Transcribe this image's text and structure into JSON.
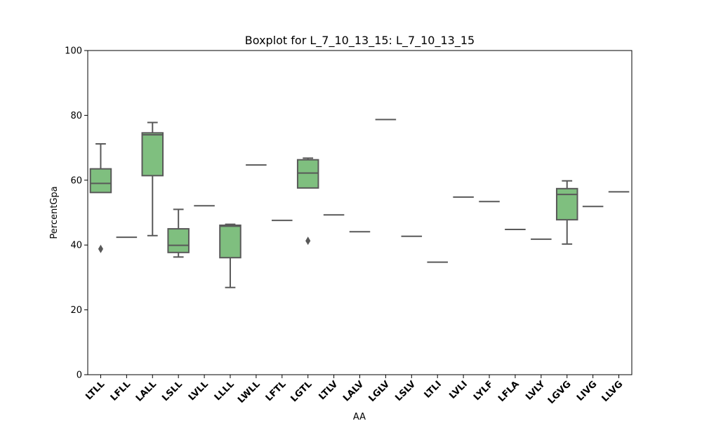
{
  "chart_data": {
    "type": "box",
    "title": "Boxplot for L_7_10_13_15: L_7_10_13_15",
    "xlabel": "AA",
    "ylabel": "PercentGpa",
    "ylim": [
      0,
      100
    ],
    "yticks": [
      0,
      20,
      40,
      60,
      80,
      100
    ],
    "grid": false,
    "box_color": "#7fbf7f",
    "line_color": "#595959",
    "categories": [
      "LTLL",
      "LFLL",
      "LALL",
      "LSLL",
      "LVLL",
      "LLLL",
      "LWLL",
      "LFTL",
      "LGTL",
      "LTLV",
      "LALV",
      "LGLV",
      "LSLV",
      "LTLI",
      "LVLI",
      "LYLF",
      "LFLA",
      "LVLY",
      "LGVG",
      "LIVG",
      "LLVG"
    ],
    "boxes": [
      {
        "min": 56.2,
        "q1": 56.2,
        "median": 59.0,
        "q3": 63.5,
        "max": 71.2,
        "outliers": [
          38.8
        ]
      },
      {
        "min": 42.4,
        "q1": 42.4,
        "median": 42.4,
        "q3": 42.4,
        "max": 42.4,
        "outliers": []
      },
      {
        "min": 42.9,
        "q1": 61.4,
        "median": 74.0,
        "q3": 74.6,
        "max": 77.8,
        "outliers": []
      },
      {
        "min": 36.3,
        "q1": 37.7,
        "median": 39.9,
        "q3": 45.0,
        "max": 51.0,
        "outliers": []
      },
      {
        "min": 52.1,
        "q1": 52.1,
        "median": 52.1,
        "q3": 52.1,
        "max": 52.1,
        "outliers": []
      },
      {
        "min": 26.9,
        "q1": 36.1,
        "median": 45.8,
        "q3": 46.1,
        "max": 46.4,
        "outliers": []
      },
      {
        "min": 64.7,
        "q1": 64.7,
        "median": 64.7,
        "q3": 64.7,
        "max": 64.7,
        "outliers": []
      },
      {
        "min": 47.6,
        "q1": 47.6,
        "median": 47.6,
        "q3": 47.6,
        "max": 47.6,
        "outliers": []
      },
      {
        "min": 57.6,
        "q1": 57.6,
        "median": 62.2,
        "q3": 66.3,
        "max": 66.8,
        "outliers": [
          41.3
        ]
      },
      {
        "min": 49.3,
        "q1": 49.3,
        "median": 49.3,
        "q3": 49.3,
        "max": 49.3,
        "outliers": []
      },
      {
        "min": 44.1,
        "q1": 44.1,
        "median": 44.1,
        "q3": 44.1,
        "max": 44.1,
        "outliers": []
      },
      {
        "min": 78.7,
        "q1": 78.7,
        "median": 78.7,
        "q3": 78.7,
        "max": 78.7,
        "outliers": []
      },
      {
        "min": 42.7,
        "q1": 42.7,
        "median": 42.7,
        "q3": 42.7,
        "max": 42.7,
        "outliers": []
      },
      {
        "min": 34.7,
        "q1": 34.7,
        "median": 34.7,
        "q3": 34.7,
        "max": 34.7,
        "outliers": []
      },
      {
        "min": 54.8,
        "q1": 54.8,
        "median": 54.8,
        "q3": 54.8,
        "max": 54.8,
        "outliers": []
      },
      {
        "min": 53.4,
        "q1": 53.4,
        "median": 53.4,
        "q3": 53.4,
        "max": 53.4,
        "outliers": []
      },
      {
        "min": 44.8,
        "q1": 44.8,
        "median": 44.8,
        "q3": 44.8,
        "max": 44.8,
        "outliers": []
      },
      {
        "min": 41.8,
        "q1": 41.8,
        "median": 41.8,
        "q3": 41.8,
        "max": 41.8,
        "outliers": []
      },
      {
        "min": 40.3,
        "q1": 47.8,
        "median": 55.6,
        "q3": 57.4,
        "max": 59.8,
        "outliers": []
      },
      {
        "min": 51.9,
        "q1": 51.9,
        "median": 51.9,
        "q3": 51.9,
        "max": 51.9,
        "outliers": []
      },
      {
        "min": 56.4,
        "q1": 56.4,
        "median": 56.4,
        "q3": 56.4,
        "max": 56.4,
        "outliers": []
      }
    ]
  }
}
